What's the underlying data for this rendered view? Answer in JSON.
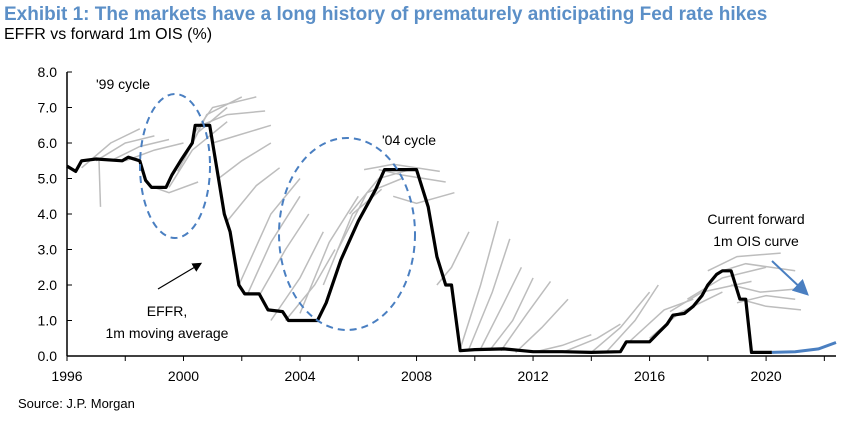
{
  "title": "Exhibit 1: The markets have a long history of prematurely anticipating Fed rate hikes",
  "subtitle": "EFFR vs forward 1m OIS (%)",
  "source": "Source: J.P. Morgan",
  "colors": {
    "title": "#5b8fc7",
    "effr": "#000000",
    "forwards": "#bdbdbd",
    "current_forward": "#4a7fc1",
    "annotation_ellipse": "#4a7fc1"
  },
  "chart_data": {
    "type": "line",
    "xlim": [
      1996,
      2022.4
    ],
    "ylim": [
      0,
      8
    ],
    "x_ticks": [
      "1996",
      "2000",
      "2004",
      "2008",
      "2012",
      "2016",
      "2020"
    ],
    "y_ticks": [
      "0.0",
      "1.0",
      "2.0",
      "3.0",
      "4.0",
      "5.0",
      "6.0",
      "7.0",
      "8.0"
    ],
    "grid": false,
    "annotations": {
      "cycle_99": "'99 cycle",
      "cycle_04": "'04 cycle",
      "effr_label_1": "EFFR,",
      "effr_label_2": "1m moving average",
      "current_label_1": "Current forward",
      "current_label_2": "1m OIS curve"
    },
    "effr": [
      [
        1996.0,
        5.35
      ],
      [
        1996.3,
        5.2
      ],
      [
        1996.5,
        5.5
      ],
      [
        1997.0,
        5.55
      ],
      [
        1997.9,
        5.5
      ],
      [
        1998.1,
        5.6
      ],
      [
        1998.5,
        5.5
      ],
      [
        1998.7,
        4.95
      ],
      [
        1998.9,
        4.75
      ],
      [
        1999.4,
        4.75
      ],
      [
        1999.6,
        5.1
      ],
      [
        1999.9,
        5.5
      ],
      [
        2000.3,
        6.0
      ],
      [
        2000.4,
        6.5
      ],
      [
        2000.9,
        6.5
      ],
      [
        2001.2,
        5.0
      ],
      [
        2001.4,
        4.0
      ],
      [
        2001.6,
        3.5
      ],
      [
        2001.9,
        2.0
      ],
      [
        2002.1,
        1.75
      ],
      [
        2002.6,
        1.75
      ],
      [
        2002.9,
        1.3
      ],
      [
        2003.4,
        1.25
      ],
      [
        2003.6,
        1.0
      ],
      [
        2004.6,
        1.0
      ],
      [
        2004.9,
        1.5
      ],
      [
        2005.4,
        2.7
      ],
      [
        2006.0,
        3.8
      ],
      [
        2006.6,
        4.7
      ],
      [
        2006.9,
        5.25
      ],
      [
        2008.0,
        5.25
      ],
      [
        2008.4,
        4.2
      ],
      [
        2008.7,
        2.8
      ],
      [
        2009.0,
        2.0
      ],
      [
        2009.2,
        2.0
      ],
      [
        2009.5,
        0.15
      ],
      [
        2010,
        0.18
      ],
      [
        2011,
        0.2
      ],
      [
        2012,
        0.12
      ],
      [
        2013,
        0.12
      ],
      [
        2014,
        0.1
      ],
      [
        2015.0,
        0.12
      ],
      [
        2015.2,
        0.4
      ],
      [
        2016.0,
        0.4
      ],
      [
        2016.3,
        0.65
      ],
      [
        2016.6,
        0.9
      ],
      [
        2016.8,
        1.15
      ],
      [
        2017.2,
        1.2
      ],
      [
        2017.5,
        1.4
      ],
      [
        2017.8,
        1.7
      ],
      [
        2018.0,
        2.0
      ],
      [
        2018.3,
        2.3
      ],
      [
        2018.5,
        2.4
      ],
      [
        2018.8,
        2.4
      ],
      [
        2019.1,
        1.6
      ],
      [
        2019.3,
        1.6
      ],
      [
        2019.5,
        0.1
      ],
      [
        2020.2,
        0.1
      ]
    ],
    "current_forward": [
      [
        2020.2,
        0.1
      ],
      [
        2021.0,
        0.12
      ],
      [
        2021.8,
        0.2
      ],
      [
        2022.4,
        0.38
      ]
    ],
    "forward_curves": [
      [
        [
          1996.5,
          5.3
        ],
        [
          1997.5,
          6.0
        ],
        [
          1998.5,
          6.4
        ]
      ],
      [
        [
          1997.0,
          5.5
        ],
        [
          1998.0,
          6.0
        ],
        [
          1999.0,
          6.2
        ]
      ],
      [
        [
          1997.5,
          5.5
        ],
        [
          1998.5,
          5.9
        ],
        [
          1999.5,
          6.1
        ]
      ],
      [
        [
          1998.0,
          5.5
        ],
        [
          1999.0,
          5.8
        ],
        [
          2000.0,
          6.0
        ]
      ],
      [
        [
          1998.8,
          4.8
        ],
        [
          1999.5,
          4.6
        ],
        [
          2000.5,
          4.9
        ]
      ],
      [
        [
          1997.1,
          5.5
        ],
        [
          1997.15,
          4.2
        ]
      ],
      [
        [
          1999.5,
          4.75
        ],
        [
          2000.3,
          5.8
        ],
        [
          2001.5,
          6.6
        ]
      ],
      [
        [
          1999.8,
          5.2
        ],
        [
          2000.5,
          6.3
        ],
        [
          2001.5,
          7.0
        ]
      ],
      [
        [
          2000.0,
          5.5
        ],
        [
          2000.8,
          6.8
        ],
        [
          2002.0,
          7.3
        ]
      ],
      [
        [
          2000.3,
          6.2
        ],
        [
          2001.0,
          7.0
        ],
        [
          2002.5,
          7.3
        ]
      ],
      [
        [
          2000.6,
          6.5
        ],
        [
          2001.5,
          6.8
        ],
        [
          2002.8,
          6.9
        ]
      ],
      [
        [
          2001.0,
          6.0
        ],
        [
          2001.8,
          6.2
        ],
        [
          2003.0,
          6.5
        ]
      ],
      [
        [
          2001.2,
          5.0
        ],
        [
          2002.0,
          5.5
        ],
        [
          2003.0,
          6.0
        ]
      ],
      [
        [
          2001.5,
          3.8
        ],
        [
          2002.5,
          4.8
        ],
        [
          2003.3,
          5.3
        ]
      ],
      [
        [
          2001.9,
          2.0
        ],
        [
          2003.0,
          4.0
        ],
        [
          2004.0,
          5.0
        ]
      ],
      [
        [
          2002.2,
          1.75
        ],
        [
          2003.0,
          3.2
        ],
        [
          2004.0,
          4.5
        ]
      ],
      [
        [
          2002.6,
          1.7
        ],
        [
          2003.5,
          3.0
        ],
        [
          2004.3,
          4.0
        ]
      ],
      [
        [
          2003.0,
          1.0
        ],
        [
          2004.0,
          2.2
        ],
        [
          2004.8,
          3.5
        ]
      ],
      [
        [
          2003.5,
          1.0
        ],
        [
          2004.5,
          2.0
        ],
        [
          2005.2,
          3.0
        ]
      ],
      [
        [
          2004.0,
          1.2
        ],
        [
          2005.0,
          3.2
        ],
        [
          2006.0,
          4.5
        ]
      ],
      [
        [
          2004.8,
          2.0
        ],
        [
          2005.8,
          4.0
        ],
        [
          2006.8,
          4.7
        ]
      ],
      [
        [
          2005.3,
          3.0
        ],
        [
          2006.3,
          4.6
        ],
        [
          2007.5,
          5.0
        ]
      ],
      [
        [
          2005.7,
          4.0
        ],
        [
          2006.7,
          5.0
        ],
        [
          2008.0,
          5.3
        ]
      ],
      [
        [
          2006.2,
          5.25
        ],
        [
          2007.2,
          5.4
        ],
        [
          2008.8,
          5.2
        ]
      ],
      [
        [
          2006.7,
          5.25
        ],
        [
          2007.5,
          5.1
        ],
        [
          2009.0,
          4.9
        ]
      ],
      [
        [
          2007.2,
          4.5
        ],
        [
          2008.0,
          4.3
        ],
        [
          2009.3,
          4.6
        ]
      ],
      [
        [
          2008.7,
          2.0
        ],
        [
          2009.2,
          2.5
        ],
        [
          2009.8,
          3.5
        ]
      ],
      [
        [
          2009.5,
          0.2
        ],
        [
          2010.2,
          2.0
        ],
        [
          2010.8,
          3.8
        ]
      ],
      [
        [
          2009.8,
          0.2
        ],
        [
          2010.6,
          1.8
        ],
        [
          2011.2,
          3.3
        ]
      ],
      [
        [
          2010.2,
          0.2
        ],
        [
          2011.0,
          1.5
        ],
        [
          2011.6,
          2.5
        ]
      ],
      [
        [
          2010.5,
          0.15
        ],
        [
          2011.3,
          1.0
        ],
        [
          2012.0,
          2.2
        ]
      ],
      [
        [
          2010.9,
          0.15
        ],
        [
          2011.8,
          1.2
        ],
        [
          2012.6,
          2.1
        ]
      ],
      [
        [
          2011.4,
          0.1
        ],
        [
          2012.3,
          0.8
        ],
        [
          2013.2,
          1.6
        ]
      ],
      [
        [
          2012.0,
          0.1
        ],
        [
          2013.0,
          0.3
        ],
        [
          2014.0,
          0.6
        ]
      ],
      [
        [
          2013.0,
          0.1
        ],
        [
          2014.2,
          0.5
        ],
        [
          2015.0,
          0.9
        ]
      ],
      [
        [
          2014.0,
          0.1
        ],
        [
          2015.0,
          0.8
        ],
        [
          2016.0,
          1.8
        ]
      ],
      [
        [
          2014.5,
          0.1
        ],
        [
          2015.5,
          1.0
        ],
        [
          2016.3,
          2.0
        ]
      ],
      [
        [
          2015.3,
          0.4
        ],
        [
          2016.5,
          1.3
        ],
        [
          2017.5,
          1.6
        ]
      ],
      [
        [
          2016.0,
          0.5
        ],
        [
          2017.0,
          1.2
        ],
        [
          2018.5,
          1.8
        ]
      ],
      [
        [
          2016.7,
          1.25
        ],
        [
          2017.8,
          1.8
        ],
        [
          2019.5,
          2.1
        ]
      ],
      [
        [
          2017.3,
          1.6
        ],
        [
          2018.5,
          2.2
        ],
        [
          2020.0,
          2.5
        ]
      ],
      [
        [
          2018.0,
          2.4
        ],
        [
          2019.0,
          2.8
        ],
        [
          2020.5,
          2.9
        ]
      ],
      [
        [
          2018.5,
          2.4
        ],
        [
          2019.3,
          2.6
        ],
        [
          2021.0,
          2.4
        ]
      ],
      [
        [
          2019.0,
          1.5
        ],
        [
          2020.0,
          1.7
        ],
        [
          2021.0,
          1.6
        ]
      ],
      [
        [
          2019.1,
          1.6
        ],
        [
          2020.0,
          1.4
        ],
        [
          2021.2,
          1.3
        ]
      ],
      [
        [
          2018.8,
          2.0
        ],
        [
          2019.8,
          1.8
        ],
        [
          2021.2,
          1.9
        ]
      ]
    ]
  }
}
